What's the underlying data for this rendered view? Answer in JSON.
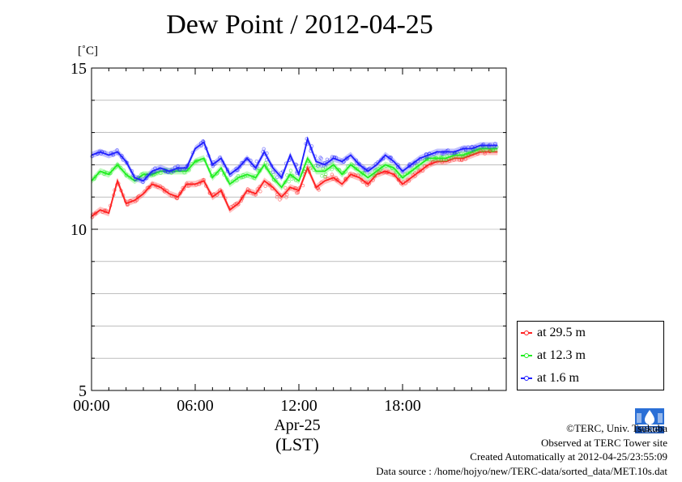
{
  "colors": {
    "red": "#ff2020",
    "green": "#20ee20",
    "blue": "#2020ff",
    "grid": "#999999"
  },
  "labels": {
    "date": "Apr-25",
    "timezone": "(LST)",
    "credit_line": "©TERC, Univ. Tsukuba",
    "observed": "Observed at TERC Tower site",
    "created": "Created Automatically at 2012-04-25/23:55:09",
    "source": "Data source : /home/hojyo/new/TERC-data/sorted_data/MET.10s.dat",
    "logo_text": "TERC"
  },
  "chart_data": {
    "type": "line",
    "title": "Dew Point / 2012-04-25",
    "ylabel": "[˚C]",
    "xlabel": "",
    "xlim": [
      0,
      24
    ],
    "ylim": [
      5,
      15
    ],
    "xticks": [
      {
        "value": 0,
        "label": "00:00"
      },
      {
        "value": 6,
        "label": "06:00"
      },
      {
        "value": 12,
        "label": "12:00"
      },
      {
        "value": 18,
        "label": "18:00"
      }
    ],
    "yticks": [
      {
        "value": 5,
        "label": "5"
      },
      {
        "value": 10,
        "label": "10"
      },
      {
        "value": 15,
        "label": "15"
      }
    ],
    "grid": true,
    "legend_position": "bottom-right outside",
    "x": [
      0,
      0.5,
      1.0,
      1.5,
      2.0,
      2.5,
      3.0,
      3.5,
      4.0,
      4.5,
      5.0,
      5.5,
      6.0,
      6.5,
      7.0,
      7.5,
      8.0,
      8.5,
      9.0,
      9.5,
      10.0,
      10.5,
      11.0,
      11.5,
      12.0,
      12.5,
      13.0,
      13.5,
      14.0,
      14.5,
      15.0,
      15.5,
      16.0,
      16.5,
      17.0,
      17.5,
      18.0,
      18.5,
      19.0,
      19.5,
      20.0,
      20.5,
      21.0,
      21.5,
      22.0,
      22.5,
      23.0,
      23.5
    ],
    "series": [
      {
        "name": "at 29.5 m",
        "color": "red",
        "values": [
          10.4,
          10.6,
          10.5,
          11.5,
          10.8,
          10.9,
          11.1,
          11.4,
          11.3,
          11.1,
          11.0,
          11.4,
          11.4,
          11.5,
          11.0,
          11.2,
          10.6,
          10.8,
          11.2,
          11.1,
          11.5,
          11.3,
          11.0,
          11.3,
          11.2,
          11.9,
          11.3,
          11.5,
          11.6,
          11.4,
          11.7,
          11.6,
          11.4,
          11.7,
          11.8,
          11.7,
          11.4,
          11.6,
          11.8,
          12.0,
          12.1,
          12.1,
          12.2,
          12.2,
          12.3,
          12.4,
          12.4,
          12.4
        ]
      },
      {
        "name": "at 12.3 m",
        "color": "green",
        "values": [
          11.5,
          11.8,
          11.7,
          12.0,
          11.7,
          11.5,
          11.7,
          11.7,
          11.8,
          11.8,
          11.8,
          11.8,
          12.1,
          12.2,
          11.6,
          11.9,
          11.4,
          11.6,
          11.7,
          11.6,
          12.0,
          11.6,
          11.3,
          11.7,
          11.5,
          12.2,
          11.8,
          11.8,
          12.0,
          11.7,
          12.0,
          11.8,
          11.6,
          11.8,
          12.0,
          11.9,
          11.6,
          11.8,
          12.0,
          12.2,
          12.2,
          12.2,
          12.3,
          12.3,
          12.4,
          12.5,
          12.5,
          12.5
        ]
      },
      {
        "name": "at 1.6 m",
        "color": "blue",
        "values": [
          12.3,
          12.4,
          12.3,
          12.4,
          12.1,
          11.6,
          11.5,
          11.8,
          11.9,
          11.8,
          11.9,
          11.9,
          12.5,
          12.7,
          12.0,
          12.2,
          11.7,
          11.9,
          12.2,
          11.9,
          12.4,
          11.9,
          11.6,
          12.3,
          11.7,
          12.8,
          12.1,
          12.0,
          12.2,
          12.1,
          12.3,
          12.0,
          11.8,
          12.0,
          12.3,
          12.1,
          11.8,
          12.0,
          12.2,
          12.3,
          12.4,
          12.4,
          12.4,
          12.5,
          12.5,
          12.6,
          12.6,
          12.6
        ]
      }
    ]
  }
}
